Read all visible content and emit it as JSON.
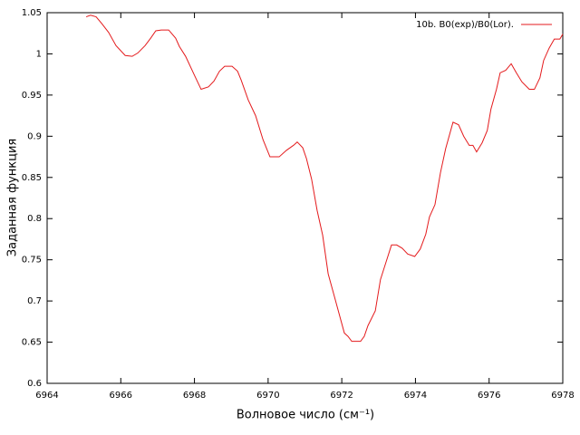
{
  "chart_data": {
    "type": "line",
    "x_label": "Волновое число (см⁻¹)",
    "y_label": "Заданная функция",
    "x": [
      6965.06,
      6965.18,
      6965.33,
      6965.48,
      6965.67,
      6965.87,
      6966.12,
      6966.31,
      6966.46,
      6966.66,
      6966.81,
      6966.95,
      6967.1,
      6967.3,
      6967.49,
      6967.59,
      6967.76,
      6967.99,
      6968.18,
      6968.38,
      6968.53,
      6968.68,
      6968.82,
      6969.02,
      6969.17,
      6969.27,
      6969.46,
      6969.66,
      6969.86,
      6970.05,
      6970.3,
      6970.5,
      6970.69,
      6970.79,
      6970.94,
      6971.04,
      6971.18,
      6971.33,
      6971.48,
      6971.63,
      6971.82,
      6972.07,
      6972.17,
      6972.27,
      6972.51,
      6972.61,
      6972.71,
      6972.91,
      6973.05,
      6973.2,
      6973.35,
      6973.49,
      6973.64,
      6973.79,
      6973.98,
      6974.13,
      6974.28,
      6974.38,
      6974.53,
      6974.68,
      6974.82,
      6975.02,
      6975.17,
      6975.31,
      6975.46,
      6975.56,
      6975.66,
      6975.81,
      6975.95,
      6976.05,
      6976.2,
      6976.3,
      6976.45,
      6976.6,
      6976.74,
      6976.89,
      6977.09,
      6977.23,
      6977.38,
      6977.48,
      6977.63,
      6977.77,
      6977.92,
      6978.0
    ],
    "series": [
      {
        "name": "10b. B0(exp)/B0(Lor).",
        "color": "#e41a1c",
        "values": [
          1.045,
          1.047,
          1.045,
          1.037,
          1.026,
          1.01,
          0.998,
          0.997,
          1.001,
          1.01,
          1.019,
          1.028,
          1.029,
          1.029,
          1.019,
          1.009,
          0.997,
          0.975,
          0.957,
          0.96,
          0.967,
          0.979,
          0.985,
          0.985,
          0.979,
          0.968,
          0.944,
          0.925,
          0.896,
          0.875,
          0.875,
          0.883,
          0.889,
          0.893,
          0.886,
          0.873,
          0.848,
          0.81,
          0.78,
          0.733,
          0.702,
          0.661,
          0.657,
          0.651,
          0.651,
          0.657,
          0.67,
          0.688,
          0.726,
          0.747,
          0.768,
          0.768,
          0.764,
          0.757,
          0.754,
          0.763,
          0.781,
          0.802,
          0.817,
          0.856,
          0.885,
          0.917,
          0.914,
          0.9,
          0.889,
          0.889,
          0.881,
          0.892,
          0.907,
          0.933,
          0.957,
          0.977,
          0.98,
          0.988,
          0.977,
          0.966,
          0.957,
          0.957,
          0.971,
          0.992,
          1.007,
          1.018,
          1.018,
          1.024
        ]
      }
    ],
    "xlim": [
      6964,
      6978
    ],
    "xticks": [
      6964,
      6966,
      6968,
      6970,
      6972,
      6974,
      6976,
      6978
    ],
    "ylim": [
      0.6,
      1.05
    ],
    "yticks": [
      0.6,
      0.65,
      0.7,
      0.75,
      0.8,
      0.85,
      0.9,
      0.95,
      1,
      1.05
    ],
    "grid": false,
    "legend": "top right"
  }
}
